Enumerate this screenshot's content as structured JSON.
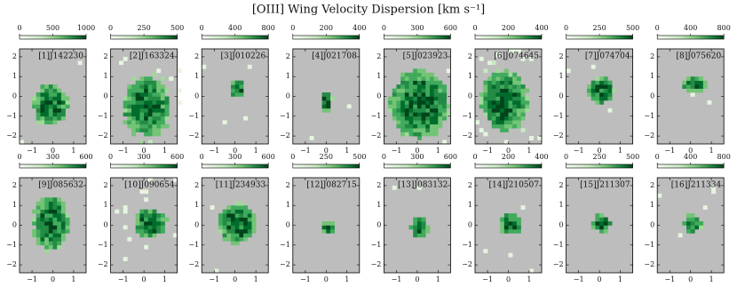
{
  "title": "[OIII] Wing Velocity Dispersion [km s⁻¹]",
  "chart_data": [
    {
      "type": "heatmap",
      "label": "[1]J142230",
      "colorbar_lim": [
        0,
        1000
      ],
      "colorbar_ticks": [
        0,
        500,
        1000
      ],
      "xlim": [
        -1.6,
        1.6
      ],
      "ylim": [
        -2.4,
        2.4
      ],
      "xticks": [
        {
          "value": -1,
          "label": "−1"
        },
        0,
        1
      ],
      "yticks": [
        {
          "value": -2,
          "label": "−2"
        },
        {
          "value": -1,
          "label": "−1"
        },
        0,
        1,
        2
      ]
    },
    {
      "type": "heatmap",
      "label": "[2]J163324",
      "colorbar_lim": [
        0,
        500
      ],
      "colorbar_ticks": [
        0,
        250,
        500
      ],
      "xlim": [
        -1.6,
        1.6
      ],
      "ylim": [
        -2.4,
        2.4
      ],
      "xticks": [
        {
          "value": -1,
          "label": "−1"
        },
        0,
        1
      ],
      "yticks": [
        {
          "value": -2,
          "label": "−2"
        },
        {
          "value": -1,
          "label": "−1"
        },
        0,
        1,
        2
      ]
    },
    {
      "type": "heatmap",
      "label": "[3]J010226",
      "colorbar_lim": [
        0,
        800
      ],
      "colorbar_ticks": [
        0,
        400,
        800
      ],
      "xlim": [
        -1.6,
        1.6
      ],
      "ylim": [
        -2.4,
        2.4
      ],
      "xticks": [
        {
          "value": -1,
          "label": "−1"
        },
        0,
        1
      ],
      "yticks": [
        {
          "value": -2,
          "label": "−2"
        },
        {
          "value": -1,
          "label": "−1"
        },
        0,
        1,
        2
      ]
    },
    {
      "type": "heatmap",
      "label": "[4]J021708",
      "colorbar_lim": [
        0,
        400
      ],
      "colorbar_ticks": [
        0,
        200,
        400
      ],
      "xlim": [
        -1.6,
        1.6
      ],
      "ylim": [
        -2.4,
        2.4
      ],
      "xticks": [
        {
          "value": -1,
          "label": "−1"
        },
        0,
        1
      ],
      "yticks": [
        {
          "value": -2,
          "label": "−2"
        },
        {
          "value": -1,
          "label": "−1"
        },
        0,
        1,
        2
      ]
    },
    {
      "type": "heatmap",
      "label": "[5]J023923",
      "colorbar_lim": [
        0,
        600
      ],
      "colorbar_ticks": [
        0,
        300,
        600
      ],
      "xlim": [
        -1.6,
        1.6
      ],
      "ylim": [
        -2.4,
        2.4
      ],
      "xticks": [
        {
          "value": -1,
          "label": "−1"
        },
        0,
        1
      ],
      "yticks": [
        {
          "value": -2,
          "label": "−2"
        },
        {
          "value": -1,
          "label": "−1"
        },
        0,
        1,
        2
      ]
    },
    {
      "type": "heatmap",
      "label": "[6]J074645",
      "colorbar_lim": [
        0,
        400
      ],
      "colorbar_ticks": [
        0,
        200,
        400
      ],
      "xlim": [
        -1.6,
        1.6
      ],
      "ylim": [
        -2.4,
        2.4
      ],
      "xticks": [
        {
          "value": -1,
          "label": "−1"
        },
        0,
        1
      ],
      "yticks": [
        {
          "value": -2,
          "label": "−2"
        },
        {
          "value": -1,
          "label": "−1"
        },
        0,
        1,
        2
      ]
    },
    {
      "type": "heatmap",
      "label": "[7]J074704",
      "colorbar_lim": [
        0,
        500
      ],
      "colorbar_ticks": [
        0,
        250,
        500
      ],
      "xlim": [
        -1.6,
        1.6
      ],
      "ylim": [
        -2.4,
        2.4
      ],
      "xticks": [
        {
          "value": -1,
          "label": "−1"
        },
        0,
        1
      ],
      "yticks": [
        {
          "value": -2,
          "label": "−2"
        },
        {
          "value": -1,
          "label": "−1"
        },
        0,
        1,
        2
      ]
    },
    {
      "type": "heatmap",
      "label": "[8]J075620",
      "colorbar_lim": [
        0,
        800
      ],
      "colorbar_ticks": [
        0,
        400,
        800
      ],
      "xlim": [
        -1.6,
        1.6
      ],
      "ylim": [
        -2.4,
        2.4
      ],
      "xticks": [
        {
          "value": -1,
          "label": "−1"
        },
        0,
        1
      ],
      "yticks": [
        {
          "value": -2,
          "label": "−2"
        },
        {
          "value": -1,
          "label": "−1"
        },
        0,
        1,
        2
      ]
    },
    {
      "type": "heatmap",
      "label": "[9]J085632",
      "colorbar_lim": [
        0,
        600
      ],
      "colorbar_ticks": [
        0,
        300,
        600
      ],
      "xlim": [
        -1.6,
        1.6
      ],
      "ylim": [
        -2.4,
        2.4
      ],
      "xticks": [
        {
          "value": -1,
          "label": "−1"
        },
        0,
        1
      ],
      "yticks": [
        {
          "value": -2,
          "label": "−2"
        },
        {
          "value": -1,
          "label": "−1"
        },
        0,
        1,
        2
      ]
    },
    {
      "type": "heatmap",
      "label": "[10]J090654",
      "colorbar_lim": [
        0,
        600
      ],
      "colorbar_ticks": [
        0,
        300,
        600
      ],
      "xlim": [
        -1.6,
        1.6
      ],
      "ylim": [
        -2.4,
        2.4
      ],
      "xticks": [
        {
          "value": -1,
          "label": "−1"
        },
        0,
        1
      ],
      "yticks": [
        {
          "value": -2,
          "label": "−2"
        },
        {
          "value": -1,
          "label": "−1"
        },
        0,
        1,
        2
      ]
    },
    {
      "type": "heatmap",
      "label": "[11]J234933",
      "colorbar_lim": [
        0,
        600
      ],
      "colorbar_ticks": [
        0,
        300,
        600
      ],
      "xlim": [
        -1.6,
        1.6
      ],
      "ylim": [
        -2.4,
        2.4
      ],
      "xticks": [
        {
          "value": -1,
          "label": "−1"
        },
        0,
        1
      ],
      "yticks": [
        {
          "value": -2,
          "label": "−2"
        },
        {
          "value": -1,
          "label": "−1"
        },
        0,
        1,
        2
      ]
    },
    {
      "type": "heatmap",
      "label": "[12]J082715",
      "colorbar_lim": [
        0,
        500
      ],
      "colorbar_ticks": [
        0,
        250,
        500
      ],
      "xlim": [
        -1.6,
        1.6
      ],
      "ylim": [
        -2.4,
        2.4
      ],
      "xticks": [
        {
          "value": -1,
          "label": "−1"
        },
        0,
        1
      ],
      "yticks": [
        {
          "value": -2,
          "label": "−2"
        },
        {
          "value": -1,
          "label": "−1"
        },
        0,
        1,
        2
      ]
    },
    {
      "type": "heatmap",
      "label": "[13]J083132",
      "colorbar_lim": [
        0,
        600
      ],
      "colorbar_ticks": [
        0,
        300,
        600
      ],
      "xlim": [
        -1.6,
        1.6
      ],
      "ylim": [
        -2.4,
        2.4
      ],
      "xticks": [
        {
          "value": -1,
          "label": "−1"
        },
        0,
        1
      ],
      "yticks": [
        {
          "value": -2,
          "label": "−2"
        },
        {
          "value": -1,
          "label": "−1"
        },
        0,
        1,
        2
      ]
    },
    {
      "type": "heatmap",
      "label": "[14]J210507",
      "colorbar_lim": [
        0,
        400
      ],
      "colorbar_ticks": [
        0,
        200,
        400
      ],
      "xlim": [
        -1.6,
        1.6
      ],
      "ylim": [
        -2.4,
        2.4
      ],
      "xticks": [
        {
          "value": -1,
          "label": "−1"
        },
        0,
        1
      ],
      "yticks": [
        {
          "value": -2,
          "label": "−2"
        },
        {
          "value": -1,
          "label": "−1"
        },
        0,
        1,
        2
      ]
    },
    {
      "type": "heatmap",
      "label": "[15]J211307",
      "colorbar_lim": [
        0,
        500
      ],
      "colorbar_ticks": [
        0,
        250,
        500
      ],
      "xlim": [
        -1.6,
        1.6
      ],
      "ylim": [
        -2.4,
        2.4
      ],
      "xticks": [
        {
          "value": -1,
          "label": "−1"
        },
        0,
        1
      ],
      "yticks": [
        {
          "value": -2,
          "label": "−2"
        },
        {
          "value": -1,
          "label": "−1"
        },
        0,
        1,
        2
      ]
    },
    {
      "type": "heatmap",
      "label": "[16]J211334",
      "colorbar_lim": [
        0,
        800
      ],
      "colorbar_ticks": [
        0,
        400,
        800
      ],
      "xlim": [
        -1.6,
        1.6
      ],
      "ylim": [
        -2.4,
        2.4
      ],
      "xticks": [
        {
          "value": -1,
          "label": "−1"
        },
        0,
        1
      ],
      "yticks": [
        {
          "value": -2,
          "label": "−2"
        },
        {
          "value": -1,
          "label": "−1"
        },
        0,
        1,
        2
      ]
    }
  ]
}
